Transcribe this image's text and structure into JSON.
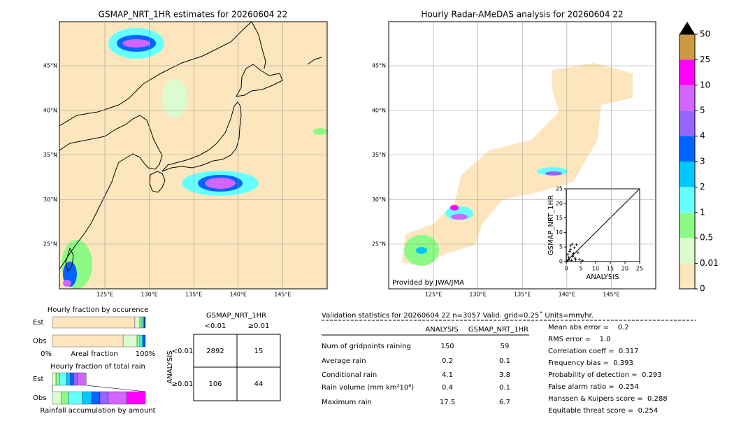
{
  "left_map": {
    "title": "GSMAP_NRT_1HR estimates for 20260604 22",
    "lat_labels": [
      "45°N",
      "40°N",
      "35°N",
      "30°N",
      "25°N"
    ],
    "lon_labels": [
      "125°E",
      "130°E",
      "135°E",
      "140°E",
      "145°E"
    ]
  },
  "right_map": {
    "title": "Hourly Radar-AMeDAS analysis for 20260604 22",
    "credit": "Provided by JWA/JMA",
    "lat_labels": [
      "45°N",
      "40°N",
      "35°N",
      "30°N",
      "25°N"
    ],
    "lon_labels": [
      "125°E",
      "130°E",
      "135°E",
      "140°E",
      "145°E"
    ]
  },
  "colorbar": {
    "levels": [
      0,
      0.01,
      0.5,
      1,
      2,
      3,
      4,
      5,
      10,
      25,
      50
    ],
    "colors": [
      "#fde6bd",
      "#dcfcd0",
      "#8efa86",
      "#66ffff",
      "#00c8ff",
      "#0064ff",
      "#9664ff",
      "#d264ff",
      "#ff00ff",
      "#cc9944"
    ],
    "extend_color": "#000000"
  },
  "scatter": {
    "type": "scatter",
    "xlabel": "ANALYSIS",
    "ylabel": "GSMAP_NRT_1HR",
    "xlim": [
      0,
      25
    ],
    "ylim": [
      0,
      25
    ],
    "xticks": [
      0,
      5,
      10,
      15,
      20,
      25
    ],
    "yticks": [
      0,
      5,
      10,
      15,
      20,
      25
    ],
    "x": [
      0.3,
      0.6,
      1,
      1.2,
      1.5,
      2,
      2.3,
      2.8,
      3,
      3.5,
      4,
      0.8,
      1.8,
      2.5,
      3.2,
      0.5,
      1.4,
      4.5,
      5.5,
      2.2
    ],
    "y": [
      0.2,
      0.5,
      0.8,
      3.5,
      5.5,
      6,
      2.2,
      4.8,
      1.2,
      5.8,
      3,
      1.5,
      0.4,
      2.8,
      0.6,
      2.5,
      4.2,
      0.8,
      0.3,
      1.8
    ]
  },
  "occurrence": {
    "title": "Hourly fraction by occurence",
    "rows": [
      "Est",
      "Obs"
    ],
    "axis_left": "0%",
    "axis_label": "Areal fraction",
    "axis_right": "100%",
    "colors": [
      "#fde6bd",
      "#dcfcd0",
      "#8efa86",
      "#66ffff",
      "#00c8ff",
      "#0064ff",
      "#9664ff"
    ],
    "est": [
      0.887,
      0.053,
      0.023,
      0.015,
      0.01,
      0.008,
      0.004
    ],
    "obs": [
      0.76,
      0.15,
      0.03,
      0.023,
      0.015,
      0.015,
      0.007
    ]
  },
  "total_rain": {
    "title": "Hourly fraction of total rain",
    "rows": [
      "Est",
      "Obs"
    ],
    "axis_label": "Rainfall accumulation by amount",
    "colors": [
      "#dcfcd0",
      "#8efa86",
      "#66ffff",
      "#00c8ff",
      "#0064ff",
      "#9664ff",
      "#d264ff",
      "#ff00ff"
    ],
    "est": [
      0.038,
      0.038,
      0.075,
      0.038,
      0.038,
      0.038,
      0.098,
      0
    ],
    "obs": [
      0.098,
      0.075,
      0.15,
      0.098,
      0.09,
      0.09,
      0.2,
      0.199
    ]
  },
  "contingency": {
    "title": "GSMAP_NRT_1HR",
    "col_labels": [
      "<0.01",
      "≥0.01"
    ],
    "row_title": "ANALYSIS",
    "row_labels": [
      "<0.01",
      "≥0.01"
    ],
    "cells": [
      [
        2892,
        15
      ],
      [
        106,
        44
      ]
    ]
  },
  "validation": {
    "header": "Validation statistics for 20260604 22  n=3057 Valid. grid=0.25˚ Units=mm/hr.",
    "columns": [
      "ANALYSIS",
      "GSMAP_NRT_1HR"
    ],
    "rows": [
      {
        "label": "Num of gridpoints raining",
        "values": [
          150,
          59
        ]
      },
      {
        "label": "Average rain",
        "values": [
          0.2,
          0.1
        ]
      },
      {
        "label": "Conditional rain",
        "values": [
          4.1,
          3.8
        ]
      },
      {
        "label": "Rain volume (mm km²10⁶)",
        "values": [
          0.4,
          0.1
        ]
      },
      {
        "label": "Maximum rain",
        "values": [
          17.5,
          6.7
        ]
      }
    ],
    "scores": [
      "Mean abs error =    0.2",
      "RMS error =    1.0",
      "Correlation coeff =  0.317",
      "Frequency bias =  0.393",
      "Probability of detection =  0.293",
      "False alarm ratio =  0.254",
      "Hanssen & Kuipers score =  0.288",
      "Equitable threat score =  0.254"
    ]
  }
}
